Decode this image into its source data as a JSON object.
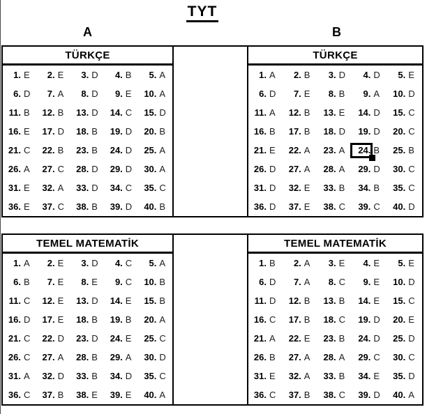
{
  "title": "TYT",
  "colors": {
    "background": "#ffffff",
    "border": "#000000",
    "text": "#000000"
  },
  "selection": {
    "column": "B",
    "section": "TÜRKÇE",
    "question": 24
  },
  "columns": [
    {
      "label": "A",
      "sections": [
        {
          "header": "TÜRKÇE",
          "answers": [
            "1.E",
            "2.E",
            "3.D",
            "4.B",
            "5.A",
            "6.D",
            "7.A",
            "8.D",
            "9.E",
            "10.A",
            "11.B",
            "12.B",
            "13.D",
            "14.C",
            "15.D",
            "16.E",
            "17.D",
            "18.B",
            "19.D",
            "20.B",
            "21.C",
            "22.B",
            "23.B",
            "24.D",
            "25.A",
            "26.A",
            "27.C",
            "28.D",
            "29.D",
            "30.A",
            "31.E",
            "32.A",
            "33.D",
            "34.C",
            "35.C",
            "36.E",
            "37.C",
            "38.B",
            "39.D",
            "40.B"
          ]
        },
        {
          "header": "TEMEL MATEMATİK",
          "answers": [
            "1.A",
            "2.E",
            "3.D",
            "4.C",
            "5.A",
            "6.B",
            "7.E",
            "8.E",
            "9.C",
            "10.B",
            "11.C",
            "12.E",
            "13.D",
            "14.E",
            "15.B",
            "16.D",
            "17.E",
            "18.B",
            "19.B",
            "20.A",
            "21.C",
            "22.D",
            "23.D",
            "24.E",
            "25.C",
            "26.C",
            "27.A",
            "28.B",
            "29.A",
            "30.D",
            "31.A",
            "32.D",
            "33.B",
            "34.D",
            "35.C",
            "36.C",
            "37.B",
            "38.E",
            "39.E",
            "40.A"
          ]
        }
      ]
    },
    {
      "label": "B",
      "sections": [
        {
          "header": "TÜRKÇE",
          "answers": [
            "1.A",
            "2.B",
            "3.D",
            "4.D",
            "5.E",
            "6.D",
            "7.E",
            "8.B",
            "9.A",
            "10.D",
            "11.A",
            "12.B",
            "13.E",
            "14.D",
            "15.C",
            "16.B",
            "17.B",
            "18.D",
            "19.D",
            "20.C",
            "21.E",
            "22.A",
            "23.A",
            "24.B",
            "25.B",
            "26.D",
            "27.A",
            "28.A",
            "29.D",
            "30.C",
            "31.D",
            "32.E",
            "33.B",
            "34.B",
            "35.C",
            "36.D",
            "37.E",
            "38.C",
            "39.C",
            "40.D"
          ]
        },
        {
          "header": "TEMEL MATEMATİK",
          "answers": [
            "1.B",
            "2.A",
            "3.E",
            "4.E",
            "5.E",
            "6.D",
            "7.A",
            "8.C",
            "9.E",
            "10.D",
            "11.D",
            "12.B",
            "13.B",
            "14.E",
            "15.C",
            "16.C",
            "17.B",
            "18.C",
            "19.D",
            "20.E",
            "21.A",
            "22.E",
            "23.B",
            "24.D",
            "25.D",
            "26.B",
            "27.A",
            "28.A",
            "29.C",
            "30.C",
            "31.E",
            "32.A",
            "33.B",
            "34.E",
            "35.D",
            "36.C",
            "37.B",
            "38.C",
            "39.D",
            "40.A"
          ]
        }
      ]
    }
  ]
}
